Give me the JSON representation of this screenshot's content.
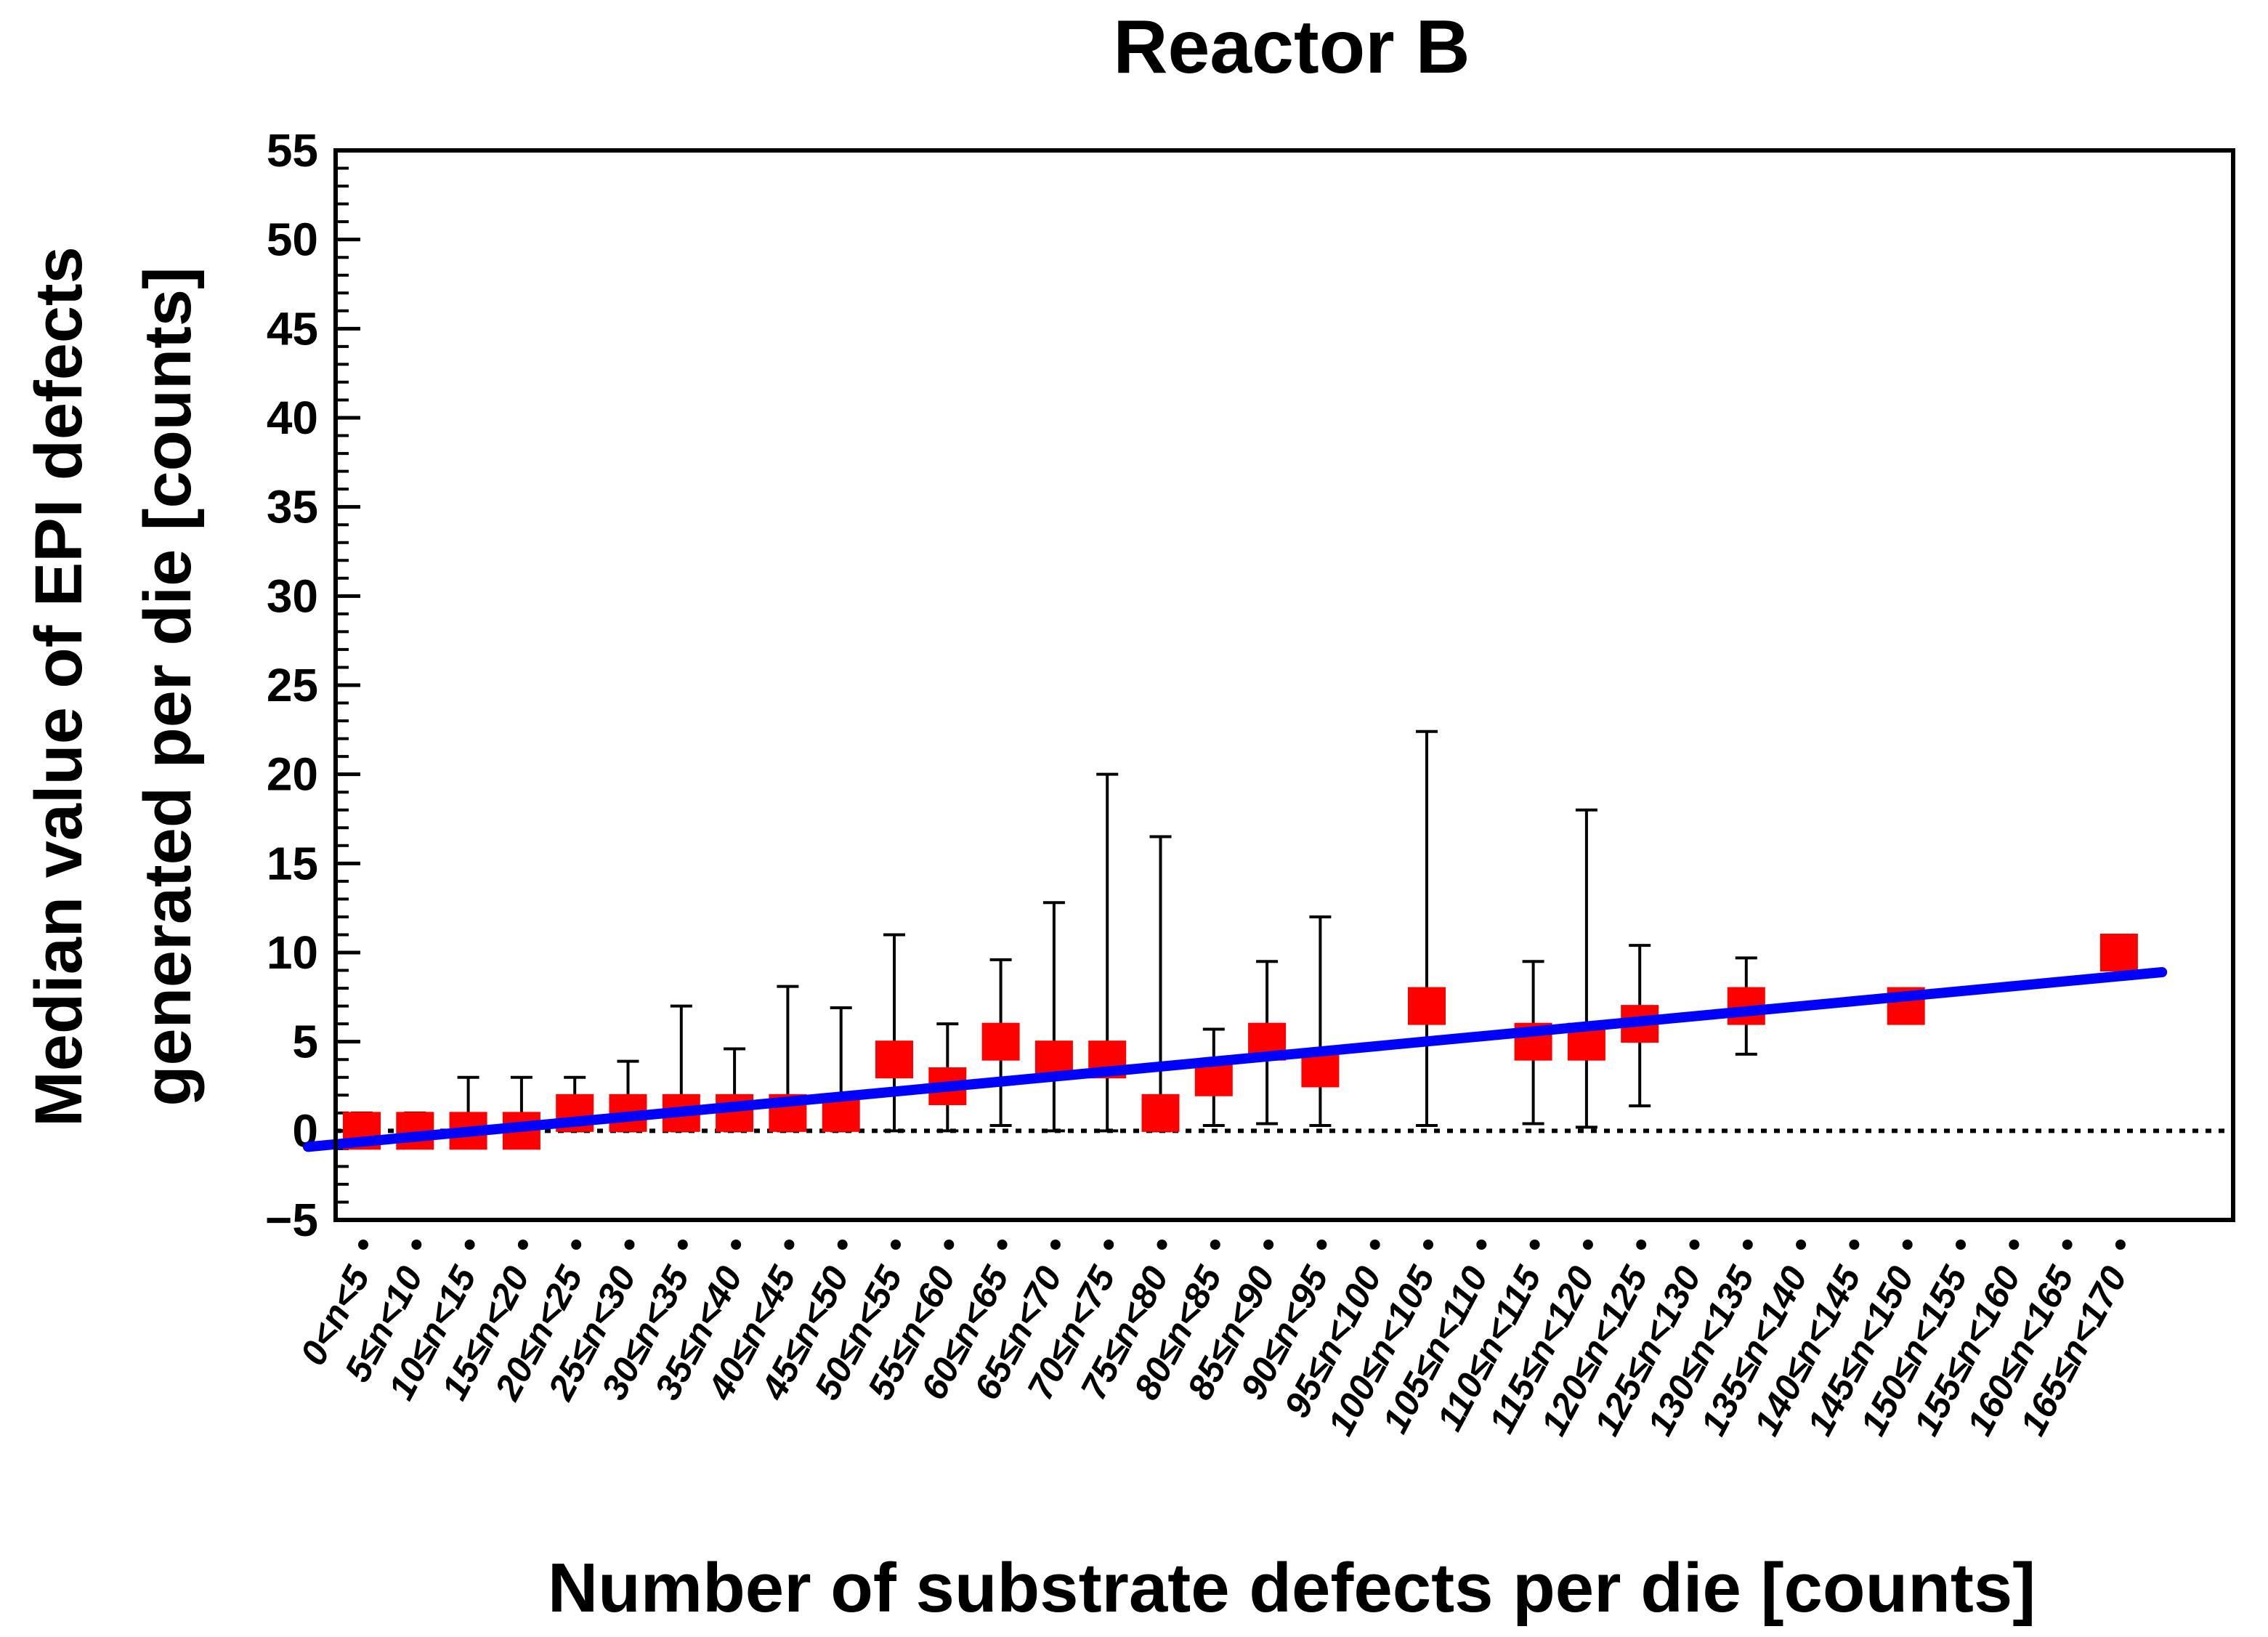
{
  "chart_data": {
    "type": "scatter",
    "title": "Reactor B",
    "xlabel": "Number of substrate defects per die [counts]",
    "ylabel_line1": "Median value of EPI defects",
    "ylabel_line2": "generated per die [counts]",
    "ylim": [
      -5,
      55
    ],
    "yticks": [
      -5,
      0,
      5,
      10,
      15,
      20,
      25,
      30,
      35,
      40,
      45,
      50,
      55
    ],
    "ytick_labels": [
      "−5",
      "0",
      "5",
      "10",
      "15",
      "20",
      "25",
      "30",
      "35",
      "40",
      "45",
      "50",
      "55"
    ],
    "y_minor_step": 1,
    "categories": [
      "0<n<5",
      "5≤n<10",
      "10≤n<15",
      "15≤n<20",
      "20≤n<25",
      "25≤n<30",
      "30≤n<35",
      "35≤n<40",
      "40≤n<45",
      "45≤n<50",
      "50≤n<55",
      "55≤n<60",
      "60≤n<65",
      "65≤n<70",
      "70≤n<75",
      "75≤n<80",
      "80≤n<85",
      "85≤n<90",
      "90≤n<95",
      "95≤n<100",
      "100≤n<105",
      "105≤n<110",
      "110≤n<115",
      "115≤n<120",
      "120≤n<125",
      "125≤n<130",
      "130≤n<135",
      "135≤n<140",
      "140≤n<145",
      "145≤n<150",
      "150≤n<155",
      "155≤n<160",
      "160≤n<165",
      "165≤n<170"
    ],
    "points": [
      {
        "category": "0<n<5",
        "median": 0,
        "err_low": 0,
        "err_high": 1
      },
      {
        "category": "5≤n<10",
        "median": 0,
        "err_low": 0,
        "err_high": 1
      },
      {
        "category": "10≤n<15",
        "median": 0,
        "err_low": 0,
        "err_high": 3
      },
      {
        "category": "15≤n<20",
        "median": 0,
        "err_low": 0,
        "err_high": 3
      },
      {
        "category": "20≤n<25",
        "median": 1,
        "err_low": 0,
        "err_high": 3
      },
      {
        "category": "25≤n<30",
        "median": 1,
        "err_low": 0,
        "err_high": 3.9
      },
      {
        "category": "30≤n<35",
        "median": 1,
        "err_low": 0,
        "err_high": 7
      },
      {
        "category": "35≤n<40",
        "median": 1,
        "err_low": 0,
        "err_high": 4.6
      },
      {
        "category": "40≤n<45",
        "median": 1,
        "err_low": 0,
        "err_high": 8.1
      },
      {
        "category": "45≤n<50",
        "median": 1,
        "err_low": 0,
        "err_high": 6.9
      },
      {
        "category": "50≤n<55",
        "median": 4,
        "err_low": 0,
        "err_high": 11
      },
      {
        "category": "55≤n<60",
        "median": 2.5,
        "err_low": 0,
        "err_high": 6
      },
      {
        "category": "60≤n<65",
        "median": 5,
        "err_low": 0.3,
        "err_high": 9.6
      },
      {
        "category": "65≤n<70",
        "median": 4,
        "err_low": 0,
        "err_high": 12.8
      },
      {
        "category": "70≤n<75",
        "median": 4,
        "err_low": 0,
        "err_high": 20
      },
      {
        "category": "75≤n<80",
        "median": 1,
        "err_low": 0,
        "err_high": 16.5
      },
      {
        "category": "80≤n<85",
        "median": 3,
        "err_low": 0.3,
        "err_high": 5.7
      },
      {
        "category": "85≤n<90",
        "median": 5,
        "err_low": 0.4,
        "err_high": 9.5
      },
      {
        "category": "90≤n<95",
        "median": 3.5,
        "err_low": 0.3,
        "err_high": 12
      },
      {
        "category": "100≤n<105",
        "median": 7,
        "err_low": 0.3,
        "err_high": 22.4
      },
      {
        "category": "110≤n<115",
        "median": 5,
        "err_low": 0.4,
        "err_high": 9.5
      },
      {
        "category": "115≤n<120",
        "median": 5,
        "err_low": 0.2,
        "err_high": 18
      },
      {
        "category": "120≤n<125",
        "median": 6,
        "err_low": 1.4,
        "err_high": 10.4
      },
      {
        "category": "130≤n<135",
        "median": 7,
        "err_low": 4.3,
        "err_high": 9.7
      },
      {
        "category": "145≤n<150",
        "median": 7,
        "err_low": 7,
        "err_high": 7
      },
      {
        "category": "165≤n<170",
        "median": 10,
        "err_low": 10,
        "err_high": 10
      }
    ],
    "fit_line": {
      "x_start": 0,
      "y_start": -0.9,
      "x_end": 34,
      "y_end": 8.9
    },
    "zero_line": {
      "y": 0,
      "style": "dotted"
    },
    "grid": false,
    "legend": "none",
    "colors": {
      "marker": "#ff0000",
      "fit": "#0000ff",
      "errorbar": "#000000",
      "axis": "#000000"
    }
  }
}
